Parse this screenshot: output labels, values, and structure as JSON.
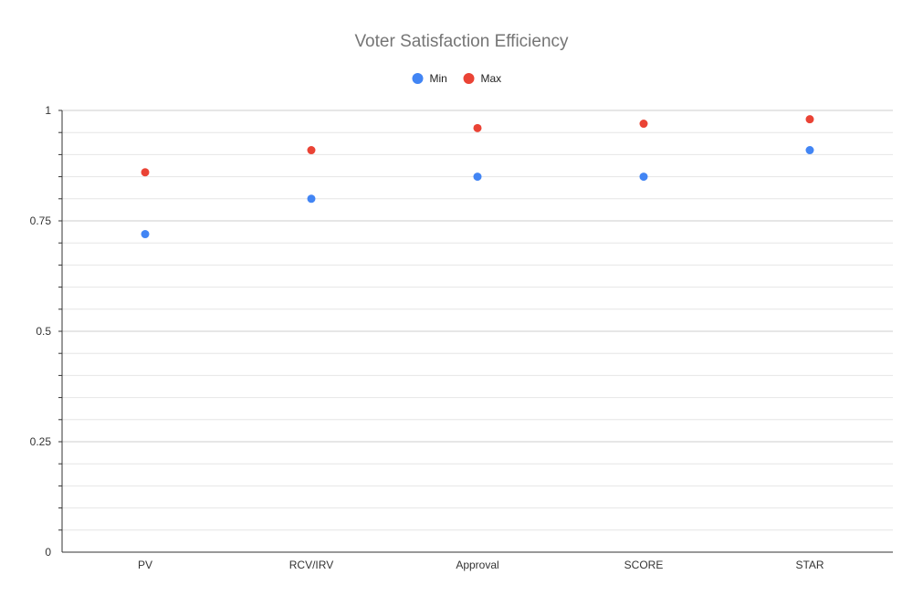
{
  "chart_data": {
    "type": "scatter",
    "title": "Voter Satisfaction Efficiency",
    "categories": [
      "PV",
      "RCV/IRV",
      "Approval",
      "SCORE",
      "STAR"
    ],
    "series": [
      {
        "name": "Min",
        "color": "#4285f4",
        "values": [
          0.72,
          0.8,
          0.85,
          0.85,
          0.91
        ]
      },
      {
        "name": "Max",
        "color": "#ea4335",
        "values": [
          0.86,
          0.91,
          0.96,
          0.97,
          0.98
        ]
      }
    ],
    "ylim": [
      0,
      1
    ],
    "yticks": [
      0,
      0.25,
      0.5,
      0.75,
      1
    ],
    "ytick_labels": [
      "0",
      "0.25",
      "0.5",
      "0.75",
      "1"
    ],
    "minor_step": 0.05,
    "grid": true,
    "legend_position": "top-center"
  }
}
